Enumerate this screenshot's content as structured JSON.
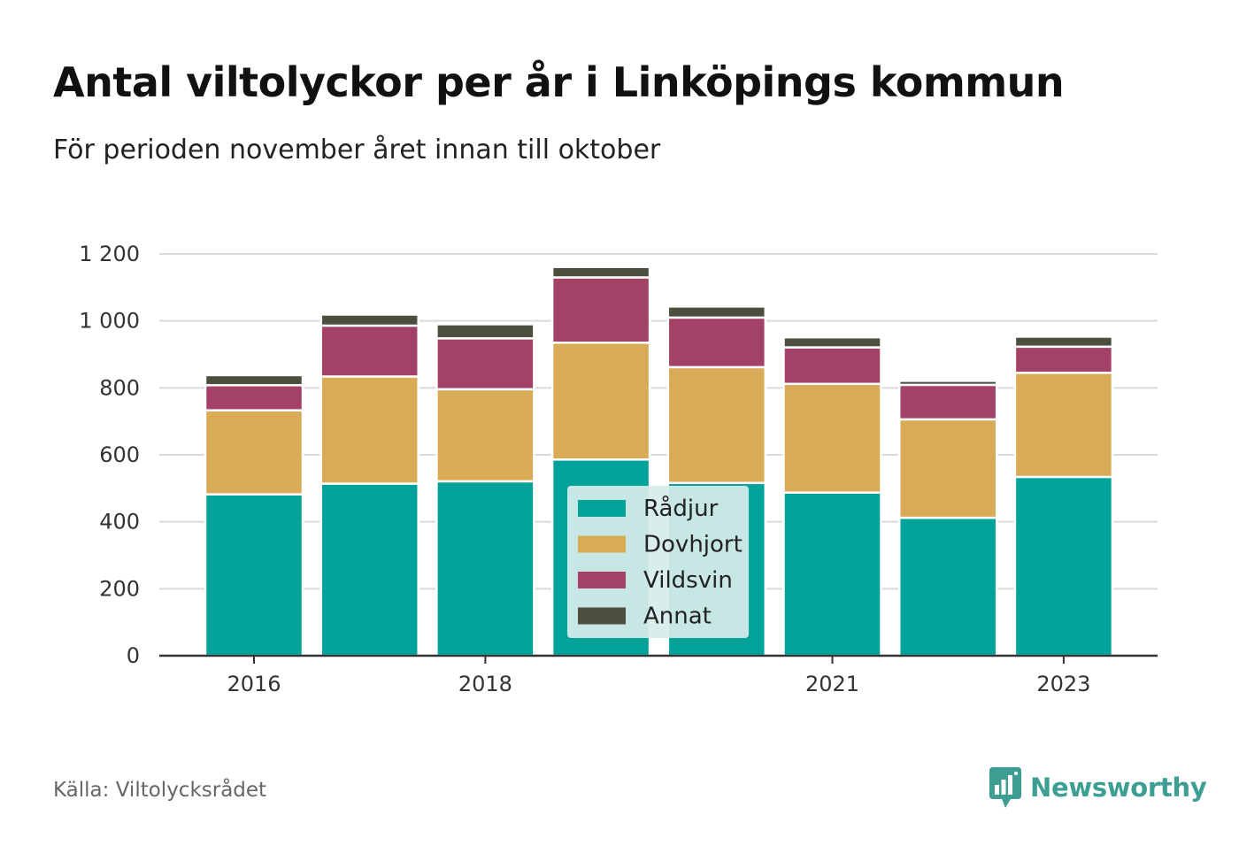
{
  "header": {
    "title": "Antal viltolyckor per år i Linköpings kommun",
    "subtitle": "För perioden november året innan till oktober"
  },
  "footer": {
    "source": "Källa: Viltolycksrådet",
    "brand": "Newsworthy",
    "brand_icon": "bar-chart-speech-bubble-icon",
    "brand_color": "#3d9e94"
  },
  "chart_data": {
    "type": "bar",
    "stacked": true,
    "title": "Antal viltolyckor per år i Linköpings kommun",
    "subtitle": "För perioden november året innan till oktober",
    "xlabel": "",
    "ylabel": "",
    "categories": [
      "2016",
      "2017",
      "2018",
      "2019",
      "2020",
      "2021",
      "2022",
      "2023"
    ],
    "x_tick_labels": [
      "2016",
      "",
      "2018",
      "",
      "",
      "2021",
      "",
      "2023"
    ],
    "y_ticks": [
      0,
      200,
      400,
      600,
      800,
      1000,
      1200
    ],
    "y_tick_labels": [
      "0",
      "200",
      "400",
      "600",
      "800",
      "1 000",
      "1 200"
    ],
    "ylim": [
      0,
      1200
    ],
    "grid": true,
    "legend_position": "center-overlay",
    "series": [
      {
        "name": "Rådjur",
        "color": "#00a39a",
        "values": [
          482,
          514,
          521,
          586,
          516,
          487,
          412,
          534
        ]
      },
      {
        "name": "Dovhjort",
        "color": "#d9ab57",
        "values": [
          251,
          320,
          275,
          349,
          346,
          325,
          294,
          311
        ]
      },
      {
        "name": "Vildsvin",
        "color": "#a44166",
        "values": [
          75,
          152,
          152,
          195,
          148,
          109,
          103,
          78
        ]
      },
      {
        "name": "Annat",
        "color": "#4c4e3e",
        "values": [
          30,
          33,
          42,
          31,
          33,
          30,
          12,
          30
        ]
      }
    ]
  }
}
